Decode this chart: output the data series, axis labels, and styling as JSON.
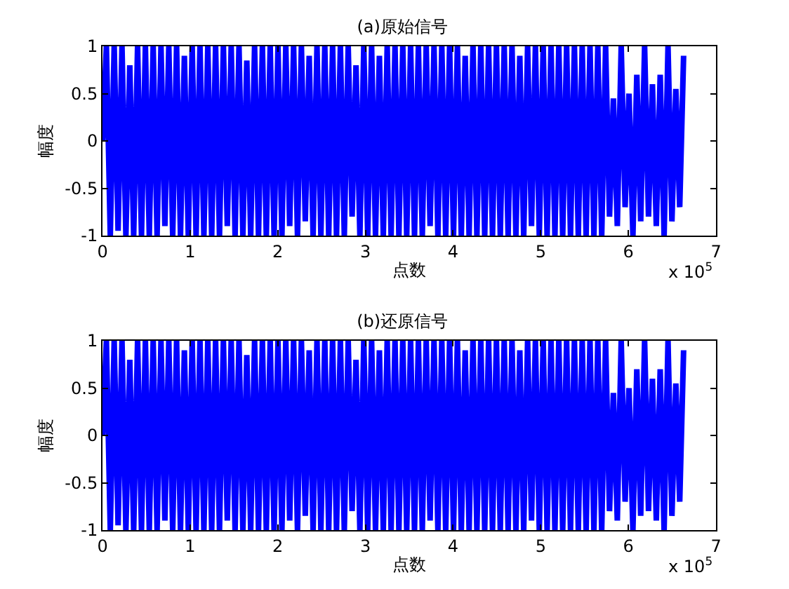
{
  "chart_data": [
    {
      "type": "line",
      "title": "(a)原始信号",
      "xlabel": "点数",
      "ylabel": "幅度",
      "annotations": [
        "x 10$^{5}$"
      ],
      "xlim": [
        0,
        7
      ],
      "xticks": [
        0,
        1,
        2,
        3,
        4,
        5,
        6,
        7
      ],
      "ylim": [
        -1,
        1
      ],
      "yticks": [
        -1,
        -0.5,
        0,
        0.5,
        1
      ],
      "x": [
        0,
        0.0445,
        0.089,
        0.1335,
        0.178,
        0.2225,
        0.267,
        0.3115,
        0.356,
        0.4005,
        0.445,
        0.4895,
        0.534,
        0.5785,
        0.623,
        0.6675,
        0.712,
        0.7565,
        0.801,
        0.8455,
        0.89,
        0.9345,
        0.979,
        1.0235,
        1.068,
        1.1125,
        1.157,
        1.2015,
        1.246,
        1.2905,
        1.335,
        1.3795,
        1.424,
        1.4685,
        1.513,
        1.5575,
        1.602,
        1.6465,
        1.691,
        1.7355,
        1.78,
        1.8245,
        1.869,
        1.9135,
        1.958,
        2.0025,
        2.047,
        2.0915,
        2.136,
        2.1805,
        2.225,
        2.2695,
        2.314,
        2.3585,
        2.403,
        2.4475,
        2.492,
        2.5365,
        2.581,
        2.6255,
        2.67,
        2.7145,
        2.759,
        2.8035,
        2.848,
        2.8925,
        2.937,
        2.9815,
        3.026,
        3.0705,
        3.115,
        3.1595,
        3.204,
        3.2485,
        3.293,
        3.3375,
        3.382,
        3.4265,
        3.471,
        3.5155,
        3.56,
        3.6045,
        3.649,
        3.6935,
        3.738,
        3.7825,
        3.827,
        3.8715,
        3.916,
        3.9605,
        4.005,
        4.0495,
        4.094,
        4.1385,
        4.183,
        4.2275,
        4.272,
        4.3165,
        4.361,
        4.4055,
        4.45,
        4.4945,
        4.539,
        4.5835,
        4.628,
        4.6725,
        4.717,
        4.7615,
        4.806,
        4.8505,
        4.895,
        4.9395,
        4.984,
        5.0285,
        5.073,
        5.1175,
        5.162,
        5.2065,
        5.251,
        5.2955,
        5.34,
        5.3845,
        5.429,
        5.4735,
        5.518,
        5.5625,
        5.607,
        5.6515,
        5.696,
        5.7405,
        5.785,
        5.8295,
        5.874,
        5.9185,
        5.963,
        6.0075,
        6.052,
        6.0965,
        6.141,
        6.1855,
        6.23,
        6.2745,
        6.319,
        6.3635,
        6.408,
        6.4525,
        6.497,
        6.5415,
        6.586,
        6.6305
      ],
      "series": [
        {
          "color": "#0000ff",
          "values": [
            0,
            1,
            -1,
            1,
            -0.95,
            1,
            -1,
            0.8,
            -1,
            1,
            -1,
            1,
            -1,
            1,
            -1,
            1,
            -0.9,
            1,
            -1,
            1,
            -1,
            0.9,
            -1,
            1,
            -1,
            1,
            -1,
            1,
            -1,
            1,
            -1,
            1,
            -0.9,
            1,
            -1,
            1,
            -1,
            0.85,
            -1,
            1,
            -1,
            1,
            -1,
            1,
            -1,
            1,
            -1,
            1,
            -0.9,
            1,
            -1,
            1,
            -0.85,
            0.9,
            -1,
            1,
            -1,
            1,
            -1,
            1,
            -1,
            1,
            -1,
            1,
            -0.8,
            0.8,
            -1,
            1,
            -1,
            1,
            -1,
            0.9,
            -1,
            1,
            -1,
            1,
            -1,
            1,
            -1,
            1,
            -1,
            1,
            -1,
            1,
            -0.9,
            1,
            -1,
            1,
            -1,
            1,
            -1,
            1,
            -1,
            0.9,
            -1,
            1,
            -1,
            1,
            -1,
            1,
            -1,
            1,
            -1,
            1,
            -1,
            1,
            -1,
            0.9,
            -1,
            1,
            -0.9,
            1,
            -1,
            1,
            -1,
            1,
            -1,
            1,
            -1,
            1,
            -1,
            1,
            -1,
            1,
            -1,
            1,
            -1,
            1,
            -1,
            1,
            -0.8,
            0.45,
            -0.9,
            1,
            -0.7,
            0.5,
            -1,
            0.7,
            -0.85,
            1,
            -0.8,
            0.6,
            -0.9,
            0.7,
            -1,
            1,
            -0.85,
            0.55,
            -0.7,
            0.9
          ]
        }
      ]
    },
    {
      "type": "line",
      "title": "(b)还原信号",
      "xlabel": "点数",
      "ylabel": "幅度",
      "annotations": [
        "x 10$^{5}$"
      ],
      "xlim": [
        0,
        7
      ],
      "xticks": [
        0,
        1,
        2,
        3,
        4,
        5,
        6,
        7
      ],
      "ylim": [
        -1,
        1
      ],
      "yticks": [
        -1,
        -0.5,
        0,
        0.5,
        1
      ],
      "x": [
        0,
        0.0445,
        0.089,
        0.1335,
        0.178,
        0.2225,
        0.267,
        0.3115,
        0.356,
        0.4005,
        0.445,
        0.4895,
        0.534,
        0.5785,
        0.623,
        0.6675,
        0.712,
        0.7565,
        0.801,
        0.8455,
        0.89,
        0.9345,
        0.979,
        1.0235,
        1.068,
        1.1125,
        1.157,
        1.2015,
        1.246,
        1.2905,
        1.335,
        1.3795,
        1.424,
        1.4685,
        1.513,
        1.5575,
        1.602,
        1.6465,
        1.691,
        1.7355,
        1.78,
        1.8245,
        1.869,
        1.9135,
        1.958,
        2.0025,
        2.047,
        2.0915,
        2.136,
        2.1805,
        2.225,
        2.2695,
        2.314,
        2.3585,
        2.403,
        2.4475,
        2.492,
        2.5365,
        2.581,
        2.6255,
        2.67,
        2.7145,
        2.759,
        2.8035,
        2.848,
        2.8925,
        2.937,
        2.9815,
        3.026,
        3.0705,
        3.115,
        3.1595,
        3.204,
        3.2485,
        3.293,
        3.3375,
        3.382,
        3.4265,
        3.471,
        3.5155,
        3.56,
        3.6045,
        3.649,
        3.6935,
        3.738,
        3.7825,
        3.827,
        3.8715,
        3.916,
        3.9605,
        4.005,
        4.0495,
        4.094,
        4.1385,
        4.183,
        4.2275,
        4.272,
        4.3165,
        4.361,
        4.4055,
        4.45,
        4.4945,
        4.539,
        4.5835,
        4.628,
        4.6725,
        4.717,
        4.7615,
        4.806,
        4.8505,
        4.895,
        4.9395,
        4.984,
        5.0285,
        5.073,
        5.1175,
        5.162,
        5.2065,
        5.251,
        5.2955,
        5.34,
        5.3845,
        5.429,
        5.4735,
        5.518,
        5.5625,
        5.607,
        5.6515,
        5.696,
        5.7405,
        5.785,
        5.8295,
        5.874,
        5.9185,
        5.963,
        6.0075,
        6.052,
        6.0965,
        6.141,
        6.1855,
        6.23,
        6.2745,
        6.319,
        6.3635,
        6.408,
        6.4525,
        6.497,
        6.5415,
        6.586,
        6.6305
      ],
      "series": [
        {
          "color": "#0000ff",
          "values": [
            0,
            1,
            -1,
            1,
            -0.95,
            1,
            -1,
            0.8,
            -1,
            1,
            -1,
            1,
            -1,
            1,
            -1,
            1,
            -0.9,
            1,
            -1,
            1,
            -1,
            0.9,
            -1,
            1,
            -1,
            1,
            -1,
            1,
            -1,
            1,
            -1,
            1,
            -0.9,
            1,
            -1,
            1,
            -1,
            0.85,
            -1,
            1,
            -1,
            1,
            -1,
            1,
            -1,
            1,
            -1,
            1,
            -0.9,
            1,
            -1,
            1,
            -0.85,
            0.9,
            -1,
            1,
            -1,
            1,
            -1,
            1,
            -1,
            1,
            -1,
            1,
            -0.8,
            0.8,
            -1,
            1,
            -1,
            1,
            -1,
            0.9,
            -1,
            1,
            -1,
            1,
            -1,
            1,
            -1,
            1,
            -1,
            1,
            -1,
            1,
            -0.9,
            1,
            -1,
            1,
            -1,
            1,
            -1,
            1,
            -1,
            0.9,
            -1,
            1,
            -1,
            1,
            -1,
            1,
            -1,
            1,
            -1,
            1,
            -1,
            1,
            -1,
            0.9,
            -1,
            1,
            -0.9,
            1,
            -1,
            1,
            -1,
            1,
            -1,
            1,
            -1,
            1,
            -1,
            1,
            -1,
            1,
            -1,
            1,
            -1,
            1,
            -1,
            1,
            -0.8,
            0.45,
            -0.9,
            1,
            -0.7,
            0.5,
            -1,
            0.7,
            -0.85,
            1,
            -0.8,
            0.6,
            -0.9,
            0.7,
            -1,
            1,
            -0.85,
            0.55,
            -0.7,
            0.9
          ]
        }
      ]
    }
  ]
}
